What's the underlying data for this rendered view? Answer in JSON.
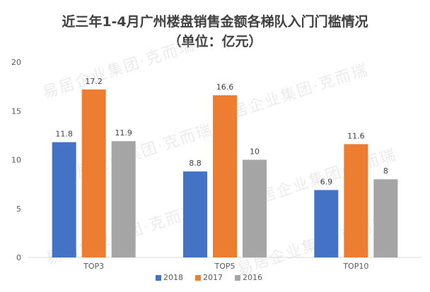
{
  "title": {
    "line1": "近三年1-4月广州楼盘销售金额各梯队入门门槛情况",
    "line2": "（单位：亿元）"
  },
  "watermark": "易居企业集团·克而瑞",
  "chart_data": {
    "type": "bar",
    "categories": [
      "TOP3",
      "TOP5",
      "TOP10"
    ],
    "series": [
      {
        "name": "2018",
        "values": [
          11.8,
          8.8,
          6.9
        ],
        "color": "#4472c4"
      },
      {
        "name": "2017",
        "values": [
          17.2,
          16.6,
          11.6
        ],
        "color": "#ed7d31"
      },
      {
        "name": "2016",
        "values": [
          11.9,
          10,
          8
        ],
        "color": "#a5a5a5"
      }
    ],
    "yticks": [
      0,
      5,
      10,
      15,
      20
    ],
    "ylim": [
      0,
      20
    ],
    "grid": false,
    "legend": "bottom-center",
    "data_labels": true
  }
}
